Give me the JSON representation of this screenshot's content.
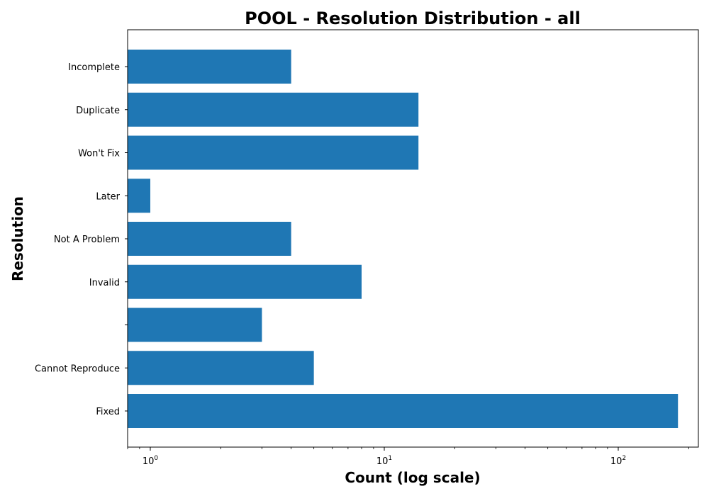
{
  "chart_data": {
    "type": "bar",
    "orientation": "horizontal",
    "title": "POOL - Resolution Distribution - all",
    "xlabel": "Count (log scale)",
    "ylabel": "Resolution",
    "xscale": "log",
    "xlim": [
      0.8,
      220
    ],
    "x_ticks": [
      {
        "value": 1,
        "base": "10",
        "exp": "0"
      },
      {
        "value": 10,
        "base": "10",
        "exp": "1"
      },
      {
        "value": 100,
        "base": "10",
        "exp": "2"
      }
    ],
    "categories": [
      "Fixed",
      "Cannot Reproduce",
      "",
      "Invalid",
      "Not A Problem",
      "Later",
      "Won't Fix",
      "Duplicate",
      "Incomplete"
    ],
    "values": [
      180,
      5,
      3,
      8,
      4,
      1,
      14,
      14,
      4
    ],
    "bar_color": "#1f77b4",
    "grid": false,
    "legend": "none"
  }
}
